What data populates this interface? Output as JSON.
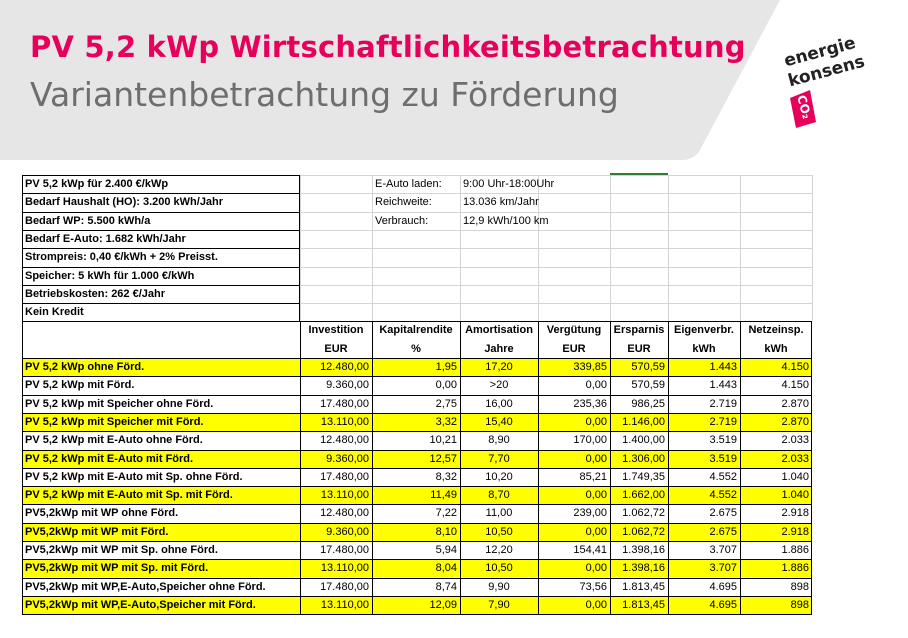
{
  "header": {
    "title": "PV 5,2 kWp Wirtschaftlichkeitsbetrachtung",
    "subtitle": "Variantenbetrachtung zu Förderung",
    "logo": {
      "line1": "energie",
      "line2": "konsens",
      "mark": "CO₂"
    }
  },
  "info": [
    "PV 5,2 kWp  für 2.400 €/kWp",
    "Bedarf Haushalt (HO): 3.200 kWh/Jahr",
    "Bedarf WP: 5.500 kWh/a",
    "Bedarf E-Auto: 1.682 kWh/Jahr",
    "Strompreis: 0,40 €/kWh + 2% Preisst.",
    "Speicher: 5 kWh für 1.000 €/kWh",
    "Betriebskosten: 262 €/Jahr",
    "Kein Kredit"
  ],
  "eauto": [
    {
      "label": "E-Auto laden:",
      "value": "9:00 Uhr-18:00Uhr"
    },
    {
      "label": "Reichweite:",
      "value": "13.036 km/Jahr"
    },
    {
      "label": "Verbrauch:",
      "value": "12,9 kWh/100 km"
    }
  ],
  "columns": [
    {
      "label": "Investition",
      "unit": "EUR"
    },
    {
      "label": "Kapitalrendite",
      "unit": "%"
    },
    {
      "label": "Amortisation",
      "unit": "Jahre"
    },
    {
      "label": "Vergütung",
      "unit": "EUR"
    },
    {
      "label": "Ersparnis",
      "unit": "EUR"
    },
    {
      "label": "Eigenverbr.",
      "unit": "kWh"
    },
    {
      "label": "Netzeinsp.",
      "unit": "kWh"
    }
  ],
  "rows": [
    {
      "name": "PV 5,2 kWp ohne Förd.",
      "highlight": true,
      "values": [
        "12.480,00",
        "1,95",
        "17,20",
        "339,85",
        "570,59",
        "1.443",
        "4.150"
      ]
    },
    {
      "name": "PV 5,2 kWp mit Förd.",
      "highlight": false,
      "values": [
        "9.360,00",
        "0,00",
        ">20",
        "0,00",
        "570,59",
        "1.443",
        "4.150"
      ]
    },
    {
      "name": "PV 5,2 kWp mit Speicher ohne Förd.",
      "highlight": false,
      "values": [
        "17.480,00",
        "2,75",
        "16,00",
        "235,36",
        "986,25",
        "2.719",
        "2.870"
      ]
    },
    {
      "name": "PV 5,2 kWp mit Speicher mit Förd.",
      "highlight": true,
      "values": [
        "13.110,00",
        "3,32",
        "15,40",
        "0,00",
        "1.146,00",
        "2.719",
        "2.870"
      ]
    },
    {
      "name": "PV 5,2 kWp mit E-Auto ohne Förd.",
      "highlight": false,
      "values": [
        "12.480,00",
        "10,21",
        "8,90",
        "170,00",
        "1.400,00",
        "3.519",
        "2.033"
      ]
    },
    {
      "name": "PV 5,2 kWp mit E-Auto mit Förd.",
      "highlight": true,
      "values": [
        "9.360,00",
        "12,57",
        "7,70",
        "0,00",
        "1.306,00",
        "3.519",
        "2.033"
      ]
    },
    {
      "name": "PV 5,2 kWp mit E-Auto mit Sp.  ohne Förd.",
      "highlight": false,
      "values": [
        "17.480,00",
        "8,32",
        "10,20",
        "85,21",
        "1.749,35",
        "4.552",
        "1.040"
      ]
    },
    {
      "name": "PV 5,2 kWp mit E-Auto mit Sp. mit Förd.",
      "highlight": true,
      "values": [
        "13.110,00",
        "11,49",
        "8,70",
        "0,00",
        "1.662,00",
        "4.552",
        "1.040"
      ]
    },
    {
      "name": "PV5,2kWp mit WP ohne Förd.",
      "highlight": false,
      "values": [
        "12.480,00",
        "7,22",
        "11,00",
        "239,00",
        "1.062,72",
        "2.675",
        "2.918"
      ]
    },
    {
      "name": "PV5,2kWp mit WP mit  Förd.",
      "highlight": true,
      "values": [
        "9.360,00",
        "8,10",
        "10,50",
        "0,00",
        "1.062,72",
        "2.675",
        "2.918"
      ]
    },
    {
      "name": "PV5,2kWp mit WP  mit Sp. ohne Förd.",
      "highlight": false,
      "values": [
        "17.480,00",
        "5,94",
        "12,20",
        "154,41",
        "1.398,16",
        "3.707",
        "1.886"
      ]
    },
    {
      "name": "PV5,2kWp mit WP  mit Sp. mit Förd.",
      "highlight": true,
      "values": [
        "13.110,00",
        "8,04",
        "10,50",
        "0,00",
        "1.398,16",
        "3.707",
        "1.886"
      ]
    },
    {
      "name": "PV5,2kWp mit WP,E-Auto,Speicher ohne Förd.",
      "highlight": false,
      "values": [
        "17.480,00",
        "8,74",
        "9,90",
        "73,56",
        "1.813,45",
        "4.695",
        "898"
      ]
    },
    {
      "name": "PV5,2kWp mit WP,E-Auto,Speicher mit Förd.",
      "highlight": true,
      "values": [
        "13.110,00",
        "12,09",
        "7,90",
        "0,00",
        "1.813,45",
        "4.695",
        "898"
      ]
    }
  ],
  "colors": {
    "title": "#e6005c",
    "subtitle": "#6e6e6e",
    "highlight": "#ffff00",
    "header_bg": "#e6e6e6"
  }
}
